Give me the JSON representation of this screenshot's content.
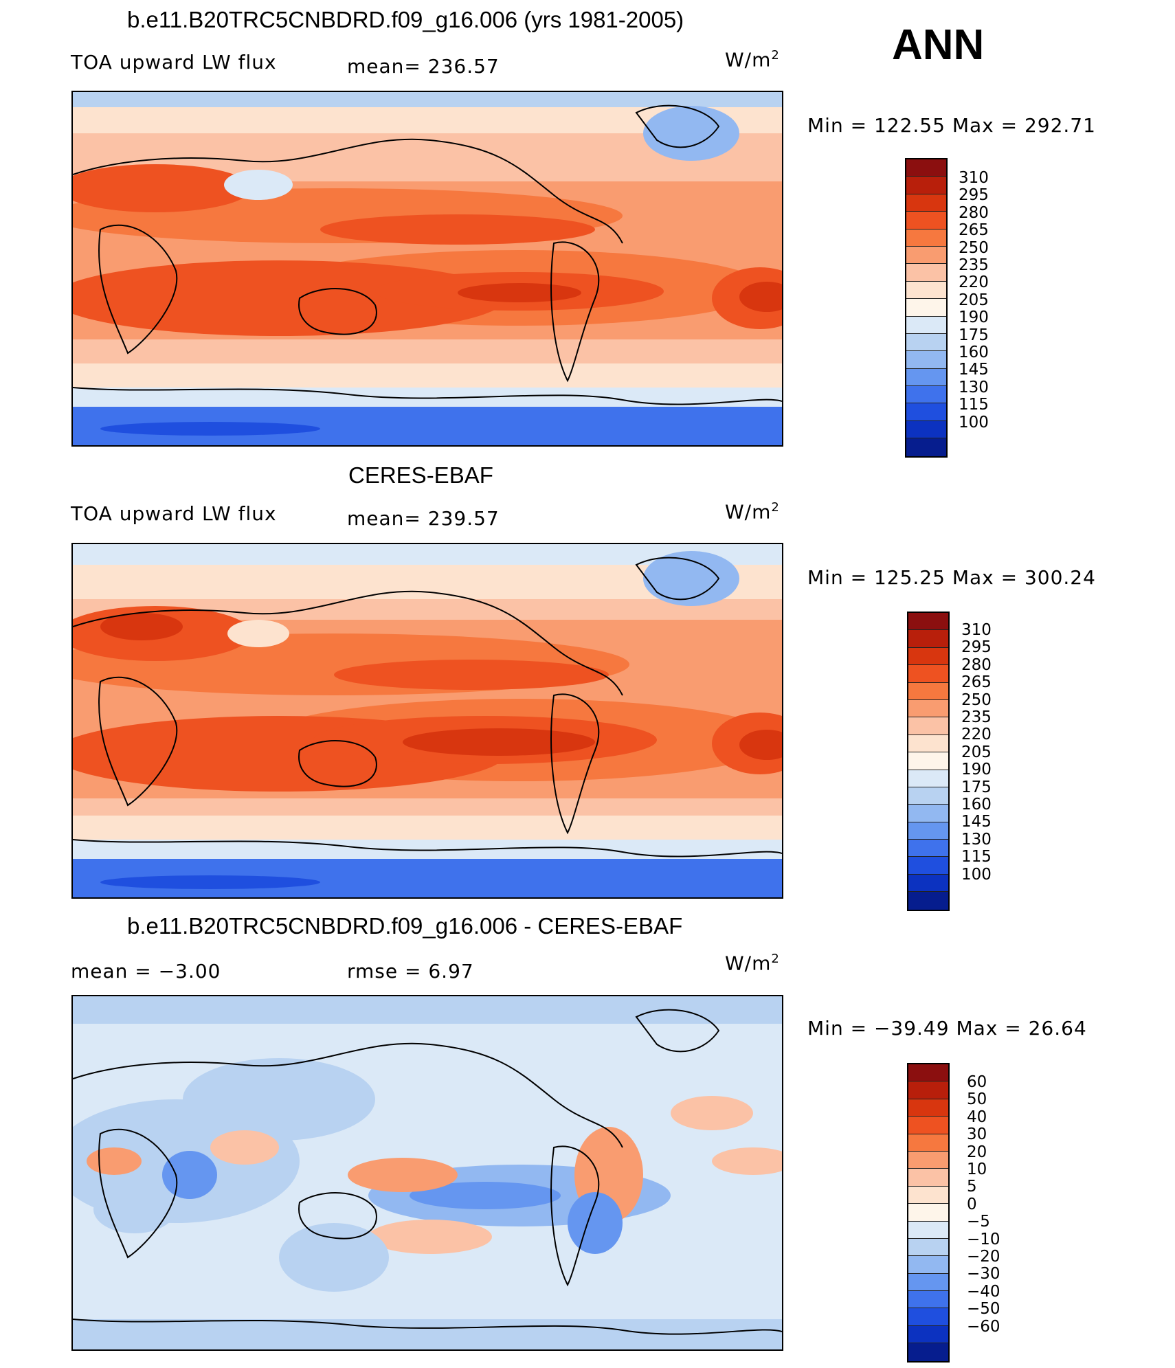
{
  "season": "ANN",
  "panels": [
    {
      "id": "model",
      "title": "b.e11.B20TRC5CNBDRD.f09_g16.006 (yrs 1981-2005)",
      "left_label": "TOA upward LW flux",
      "center_label": "mean= 236.57",
      "units": "W/m",
      "units_sup": "2",
      "minmax": "Min = 122.55 Max = 292.71",
      "palette": "abs",
      "ticks": [
        "310",
        "295",
        "280",
        "265",
        "250",
        "235",
        "220",
        "205",
        "190",
        "175",
        "160",
        "145",
        "130",
        "115",
        "100"
      ]
    },
    {
      "id": "obs",
      "title": "CERES-EBAF",
      "left_label": "TOA upward LW flux",
      "center_label": "mean= 239.57",
      "units": "W/m",
      "units_sup": "2",
      "minmax": "Min = 125.25 Max = 300.24",
      "palette": "abs",
      "ticks": [
        "310",
        "295",
        "280",
        "265",
        "250",
        "235",
        "220",
        "205",
        "190",
        "175",
        "160",
        "145",
        "130",
        "115",
        "100"
      ]
    },
    {
      "id": "diff",
      "title": "b.e11.B20TRC5CNBDRD.f09_g16.006 - CERES-EBAF",
      "left_label": "mean =   −3.00",
      "center_label": "rmse =    6.97",
      "units": "W/m",
      "units_sup": "2",
      "minmax": "Min = −39.49 Max =  26.64",
      "palette": "diff",
      "ticks": [
        "60",
        "50",
        "40",
        "30",
        "20",
        "10",
        "5",
        "0",
        "−5",
        "−10",
        "−20",
        "−30",
        "−40",
        "−50",
        "−60"
      ]
    }
  ],
  "colors": {
    "abs": [
      "#8b0f0f",
      "#b81f0b",
      "#d8360f",
      "#ee5221",
      "#f6783f",
      "#f99c70",
      "#fbc2a6",
      "#fde3cf",
      "#fef5ea",
      "#dbe9f7",
      "#b8d2f1",
      "#92b8f1",
      "#6596f0",
      "#3f72ec",
      "#1f4fdf",
      "#0c32c0",
      "#061d8e"
    ],
    "diff": [
      "#8b0f0f",
      "#b81f0b",
      "#d8360f",
      "#ee5221",
      "#f6783f",
      "#f99c70",
      "#fbc2a6",
      "#fde3cf",
      "#fef5ea",
      "#dbe9f7",
      "#b8d2f1",
      "#92b8f1",
      "#6596f0",
      "#3f72ec",
      "#1f4fdf",
      "#0c32c0",
      "#061d8e"
    ]
  }
}
